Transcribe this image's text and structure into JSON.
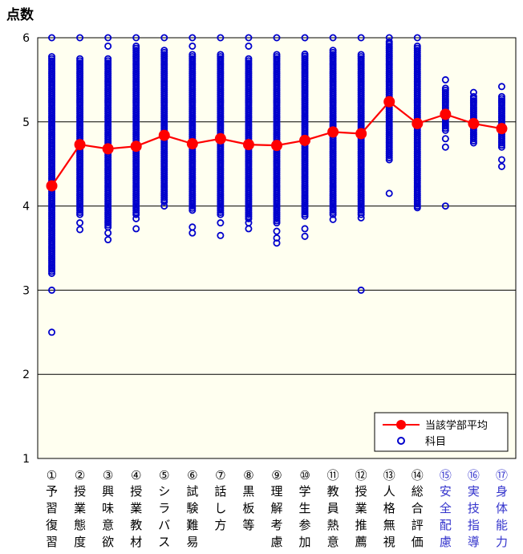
{
  "chart_data": {
    "type": "scatter",
    "ylabel": "点数",
    "ylim": [
      1,
      6
    ],
    "yticks": [
      "1",
      "2",
      "3",
      "4",
      "5",
      "6"
    ],
    "grid": true,
    "legend_position": "bottom-right",
    "plot_background": "#fffff0",
    "categories": [
      {
        "num": "①",
        "label": "予習復習",
        "color": "#000000"
      },
      {
        "num": "②",
        "label": "授業態度",
        "color": "#000000"
      },
      {
        "num": "③",
        "label": "興味意欲",
        "color": "#000000"
      },
      {
        "num": "④",
        "label": "授業教材",
        "color": "#000000"
      },
      {
        "num": "⑤",
        "label": "シラバス",
        "color": "#000000"
      },
      {
        "num": "⑥",
        "label": "試験難易",
        "color": "#000000"
      },
      {
        "num": "⑦",
        "label": "話し方",
        "color": "#000000"
      },
      {
        "num": "⑧",
        "label": "黒板等",
        "color": "#000000"
      },
      {
        "num": "⑨",
        "label": "理解考慮",
        "color": "#000000"
      },
      {
        "num": "⑩",
        "label": "学生参加",
        "color": "#000000"
      },
      {
        "num": "⑪",
        "label": "教員熱意",
        "color": "#000000"
      },
      {
        "num": "⑫",
        "label": "授業推薦",
        "color": "#000000"
      },
      {
        "num": "⑬",
        "label": "人格無視",
        "color": "#000000"
      },
      {
        "num": "⑭",
        "label": "総合評価",
        "color": "#000000"
      },
      {
        "num": "⑮",
        "label": "安全配慮",
        "color": "#3333cc"
      },
      {
        "num": "⑯",
        "label": "実技指導",
        "color": "#3333cc"
      },
      {
        "num": "⑰",
        "label": "身体能力",
        "color": "#3333cc"
      }
    ],
    "series": [
      {
        "name": "当該学部平均",
        "type": "line",
        "color": "#ff0000",
        "values": [
          4.24,
          4.73,
          4.68,
          4.71,
          4.84,
          4.74,
          4.8,
          4.73,
          4.72,
          4.78,
          4.88,
          4.86,
          5.24,
          4.98,
          5.09,
          4.98,
          4.92
        ]
      },
      {
        "name": "科目",
        "type": "scatter",
        "color": "#0000cc",
        "ranges": [
          {
            "min": 3.2,
            "max": 5.78,
            "outliers": [
              6.0,
              3.0,
              2.5
            ]
          },
          {
            "min": 3.9,
            "max": 5.75,
            "outliers": [
              6.0,
              3.8,
              3.72
            ]
          },
          {
            "min": 3.75,
            "max": 5.75,
            "outliers": [
              6.0,
              5.9,
              3.68,
              3.6
            ]
          },
          {
            "min": 3.9,
            "max": 5.9,
            "outliers": [
              6.0,
              3.85,
              3.73
            ]
          },
          {
            "min": 4.05,
            "max": 5.85,
            "outliers": [
              6.0,
              4.0
            ]
          },
          {
            "min": 3.95,
            "max": 5.8,
            "outliers": [
              6.0,
              5.9,
              3.75,
              3.68
            ]
          },
          {
            "min": 3.9,
            "max": 5.8,
            "outliers": [
              6.0,
              3.8,
              3.65
            ]
          },
          {
            "min": 3.85,
            "max": 5.75,
            "outliers": [
              6.0,
              5.9,
              3.8,
              3.73
            ]
          },
          {
            "min": 3.8,
            "max": 5.8,
            "outliers": [
              6.0,
              3.7,
              3.62,
              3.56
            ]
          },
          {
            "min": 3.88,
            "max": 5.82,
            "outliers": [
              6.0,
              3.73,
              3.64
            ]
          },
          {
            "min": 3.9,
            "max": 5.85,
            "outliers": [
              6.0,
              3.84
            ]
          },
          {
            "min": 3.9,
            "max": 5.8,
            "outliers": [
              6.0,
              3.86,
              3.0
            ]
          },
          {
            "min": 4.55,
            "max": 5.95,
            "outliers": [
              6.0,
              4.15
            ]
          },
          {
            "min": 4.0,
            "max": 5.9,
            "outliers": [
              6.0,
              3.98
            ]
          },
          {
            "min": 4.9,
            "max": 5.4,
            "outliers": [
              5.5,
              4.8,
              4.7,
              4.0
            ]
          },
          {
            "min": 4.75,
            "max": 5.3,
            "outliers": [
              5.35
            ]
          },
          {
            "min": 4.7,
            "max": 5.3,
            "outliers": [
              5.42,
              4.55,
              4.47
            ]
          }
        ]
      }
    ]
  }
}
